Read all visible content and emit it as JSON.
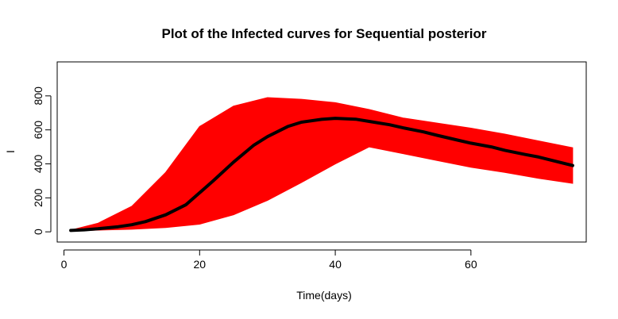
{
  "chart_data": {
    "type": "line",
    "title": "Plot of the Infected curves for Sequential posterior",
    "xlabel": "Time(days)",
    "ylabel": "I",
    "xlim": [
      -1,
      77
    ],
    "ylim": [
      -60,
      1000
    ],
    "xticks": [
      0,
      20,
      40,
      60
    ],
    "yticks": [
      0,
      200,
      400,
      600,
      800
    ],
    "grid": false,
    "legend": "none",
    "colors": {
      "band": "#ff0000",
      "mean": "#000000"
    },
    "band": {
      "name": "",
      "x": [
        1,
        5,
        10,
        15,
        20,
        25,
        30,
        35,
        40,
        45,
        50,
        55,
        60,
        65,
        70,
        75
      ],
      "lower": [
        5,
        10,
        15,
        25,
        45,
        100,
        185,
        290,
        400,
        500,
        460,
        420,
        380,
        350,
        315,
        285
      ],
      "upper": [
        10,
        50,
        150,
        350,
        620,
        740,
        790,
        780,
        760,
        720,
        670,
        640,
        610,
        575,
        535,
        495
      ]
    },
    "series": [
      {
        "name": "",
        "x": [
          1,
          3,
          5,
          8,
          10,
          12,
          15,
          18,
          20,
          22,
          25,
          28,
          30,
          33,
          35,
          38,
          40,
          43,
          45,
          48,
          50,
          53,
          55,
          58,
          60,
          63,
          65,
          68,
          70,
          73,
          75
        ],
        "values": [
          8,
          12,
          18,
          30,
          42,
          60,
          100,
          160,
          230,
          300,
          410,
          510,
          560,
          620,
          645,
          662,
          668,
          663,
          650,
          630,
          612,
          588,
          568,
          540,
          522,
          500,
          480,
          455,
          440,
          410,
          390
        ]
      }
    ]
  }
}
